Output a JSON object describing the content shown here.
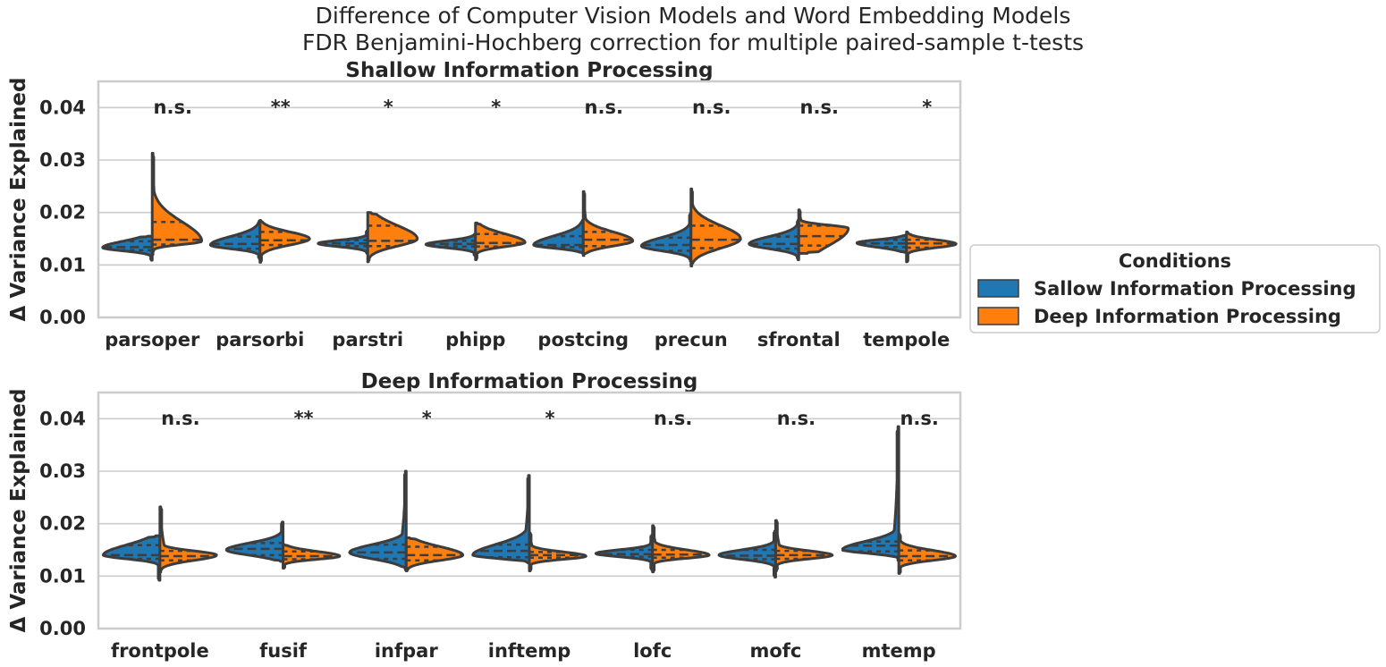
{
  "title_line1": "Difference of Computer Vision Models and Word Embedding Models",
  "title_line2": "FDR Benjamini-Hochberg correction for multiple paired-sample t-tests",
  "colors": {
    "shallow": "#1f77b4",
    "deep": "#ff7f0e",
    "outline": "#3d3d3d",
    "grid": "#cccccc"
  },
  "legend": {
    "title": "Conditions",
    "items": [
      {
        "label": "Sallow Information Processing",
        "color": "#1f77b4"
      },
      {
        "label": "Deep Information Processing",
        "color": "#ff7f0e"
      }
    ]
  },
  "chart_data": [
    {
      "type": "violin",
      "title": "Shallow Information Processing",
      "ylabel": "Δ Variance Explained",
      "ylim": [
        0.0,
        0.045
      ],
      "yticks": [
        "0.00",
        "0.01",
        "0.02",
        "0.03",
        "0.04"
      ],
      "grid": true,
      "categories": [
        "parsoper",
        "parsorbi",
        "parstri",
        "phipp",
        "postcing",
        "precun",
        "sfrontal",
        "tempole"
      ],
      "significance": [
        "n.s.",
        "**",
        "*",
        "*",
        "n.s.",
        "n.s.",
        "n.s.",
        "*"
      ],
      "series": [
        {
          "name": "Sallow Information Processing",
          "min": [
            0.0109,
            0.0112,
            0.0122,
            0.0118,
            0.0122,
            0.0108,
            0.011,
            0.0124
          ],
          "q1": [
            0.0128,
            0.0131,
            0.0136,
            0.0135,
            0.0134,
            0.0127,
            0.0131,
            0.0134
          ],
          "median": [
            0.0134,
            0.014,
            0.0141,
            0.014,
            0.0138,
            0.0138,
            0.014,
            0.0141
          ],
          "q3": [
            0.0145,
            0.0154,
            0.0147,
            0.0146,
            0.0155,
            0.0152,
            0.0154,
            0.0148
          ],
          "max": [
            0.0155,
            0.0184,
            0.0165,
            0.0159,
            0.0185,
            0.0198,
            0.0185,
            0.0157
          ],
          "mode": [
            0.0133,
            0.0138,
            0.0141,
            0.0139,
            0.0138,
            0.0136,
            0.014,
            0.0142
          ]
        },
        {
          "name": "Deep Information Processing",
          "min": [
            0.012,
            0.0105,
            0.0106,
            0.011,
            0.0118,
            0.0098,
            0.0122,
            0.0106
          ],
          "q1": [
            0.0139,
            0.0138,
            0.0136,
            0.0135,
            0.0136,
            0.0132,
            0.0137,
            0.0133
          ],
          "median": [
            0.0148,
            0.0147,
            0.0146,
            0.0142,
            0.0148,
            0.0148,
            0.0155,
            0.0141
          ],
          "q3": [
            0.0182,
            0.0163,
            0.0175,
            0.0159,
            0.0163,
            0.0175,
            0.0175,
            0.0148
          ],
          "max": [
            0.0313,
            0.0185,
            0.02,
            0.018,
            0.024,
            0.0245,
            0.0205,
            0.0163
          ],
          "mode": [
            0.0145,
            0.015,
            0.015,
            0.0143,
            0.0146,
            0.015,
            0.017,
            0.014
          ]
        }
      ]
    },
    {
      "type": "violin",
      "title": "Deep Information Processing",
      "ylabel": "Δ Variance Explained",
      "ylim": [
        0.0,
        0.045
      ],
      "yticks": [
        "0.00",
        "0.01",
        "0.02",
        "0.03",
        "0.04"
      ],
      "grid": true,
      "categories": [
        "frontpole",
        "fusif",
        "infpar",
        "inftemp",
        "lofc",
        "mofc",
        "mtemp"
      ],
      "significance": [
        "n.s.",
        "**",
        "*",
        "*",
        "n.s.",
        "n.s.",
        "n.s."
      ],
      "series": [
        {
          "name": "Sallow Information Processing",
          "min": [
            0.0092,
            0.0128,
            0.0112,
            0.0125,
            0.0112,
            0.0098,
            0.013
          ],
          "q1": [
            0.0133,
            0.014,
            0.0133,
            0.0136,
            0.0137,
            0.0132,
            0.0147
          ],
          "median": [
            0.014,
            0.0152,
            0.0145,
            0.0148,
            0.0142,
            0.0139,
            0.0158
          ],
          "q3": [
            0.0159,
            0.0163,
            0.016,
            0.016,
            0.015,
            0.015,
            0.0166
          ],
          "max": [
            0.0177,
            0.0203,
            0.03,
            0.0292,
            0.0178,
            0.0186,
            0.0385
          ],
          "mode": [
            0.014,
            0.015,
            0.0145,
            0.014,
            0.0143,
            0.014,
            0.015
          ]
        },
        {
          "name": "Deep Information Processing",
          "min": [
            0.0108,
            0.0115,
            0.011,
            0.011,
            0.0108,
            0.011,
            0.0105
          ],
          "q1": [
            0.013,
            0.0132,
            0.013,
            0.0135,
            0.0135,
            0.0133,
            0.013
          ],
          "median": [
            0.0138,
            0.0138,
            0.014,
            0.014,
            0.0141,
            0.014,
            0.0138
          ],
          "q3": [
            0.0148,
            0.0147,
            0.0156,
            0.0146,
            0.015,
            0.0148,
            0.0149
          ],
          "max": [
            0.0232,
            0.016,
            0.0173,
            0.0182,
            0.0196,
            0.0206,
            0.018
          ],
          "mode": [
            0.014,
            0.0138,
            0.014,
            0.0138,
            0.014,
            0.014,
            0.0138
          ]
        }
      ]
    }
  ]
}
